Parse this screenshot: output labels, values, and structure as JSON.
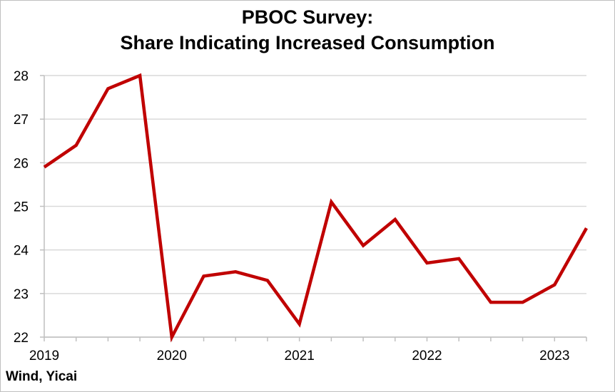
{
  "chart_data": {
    "type": "line",
    "title": [
      "PBOC Survey:",
      "Share Indicating Increased Consumption"
    ],
    "x": [
      "2019-Q1",
      "2019-Q2",
      "2019-Q3",
      "2019-Q4",
      "2020-Q1",
      "2020-Q2",
      "2020-Q3",
      "2020-Q4",
      "2021-Q1",
      "2021-Q2",
      "2021-Q3",
      "2021-Q4",
      "2022-Q1",
      "2022-Q2",
      "2022-Q3",
      "2022-Q4",
      "2023-Q1",
      "2023-Q2"
    ],
    "x_tick_labels": [
      {
        "label": "2019",
        "at": "2019-Q1"
      },
      {
        "label": "2020",
        "at": "2020-Q1"
      },
      {
        "label": "2021",
        "at": "2021-Q1"
      },
      {
        "label": "2022",
        "at": "2022-Q1"
      },
      {
        "label": "2023",
        "at": "2023-Q1"
      }
    ],
    "series": [
      {
        "values": [
          25.9,
          26.4,
          27.7,
          28.0,
          22.0,
          23.4,
          23.5,
          23.3,
          22.3,
          25.1,
          24.1,
          24.7,
          23.7,
          23.8,
          22.8,
          22.8,
          23.2,
          24.5
        ],
        "color": "#c00000"
      }
    ],
    "ylim": [
      22,
      28
    ],
    "y_ticks": [
      22,
      23,
      24,
      25,
      26,
      27,
      28
    ],
    "grid": "horizontal",
    "xlabel": "",
    "ylabel": ""
  },
  "source": "Wind, Yicai"
}
